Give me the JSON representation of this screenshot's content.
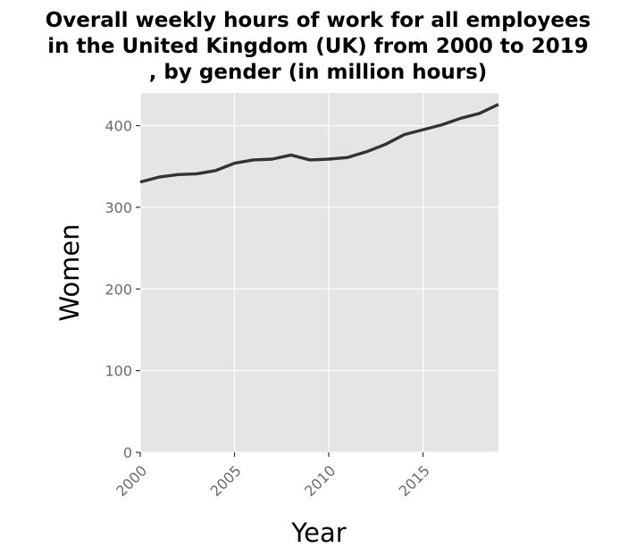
{
  "chart_data": {
    "type": "line",
    "title_lines": [
      "Overall weekly hours of work for all employees",
      "in the United Kingdom (UK) from 2000 to 2019",
      ", by gender (in million hours)"
    ],
    "xlabel": "Year",
    "ylabel": "Women",
    "xlim": [
      2000,
      2019
    ],
    "ylim": [
      0,
      440
    ],
    "x_ticks": [
      2000,
      2005,
      2010,
      2015
    ],
    "y_ticks": [
      0,
      100,
      200,
      300,
      400
    ],
    "grid": true,
    "legend": "none",
    "series": [
      {
        "color": "#333333",
        "x": [
          2000,
          2001,
          2002,
          2003,
          2004,
          2005,
          2006,
          2007,
          2008,
          2009,
          2010,
          2011,
          2012,
          2013,
          2014,
          2015,
          2016,
          2017,
          2018,
          2019
        ],
        "y": [
          331,
          337,
          340,
          341,
          345,
          354,
          358,
          359,
          364,
          358,
          359,
          361,
          368,
          377,
          389,
          395,
          401,
          409,
          415,
          426
        ]
      }
    ]
  },
  "colors": {
    "panel_bg": "#e5e5e5",
    "grid": "#ffffff",
    "line": "#333333",
    "tick_text": "#6b6b6b",
    "tick_mark": "#333333"
  }
}
